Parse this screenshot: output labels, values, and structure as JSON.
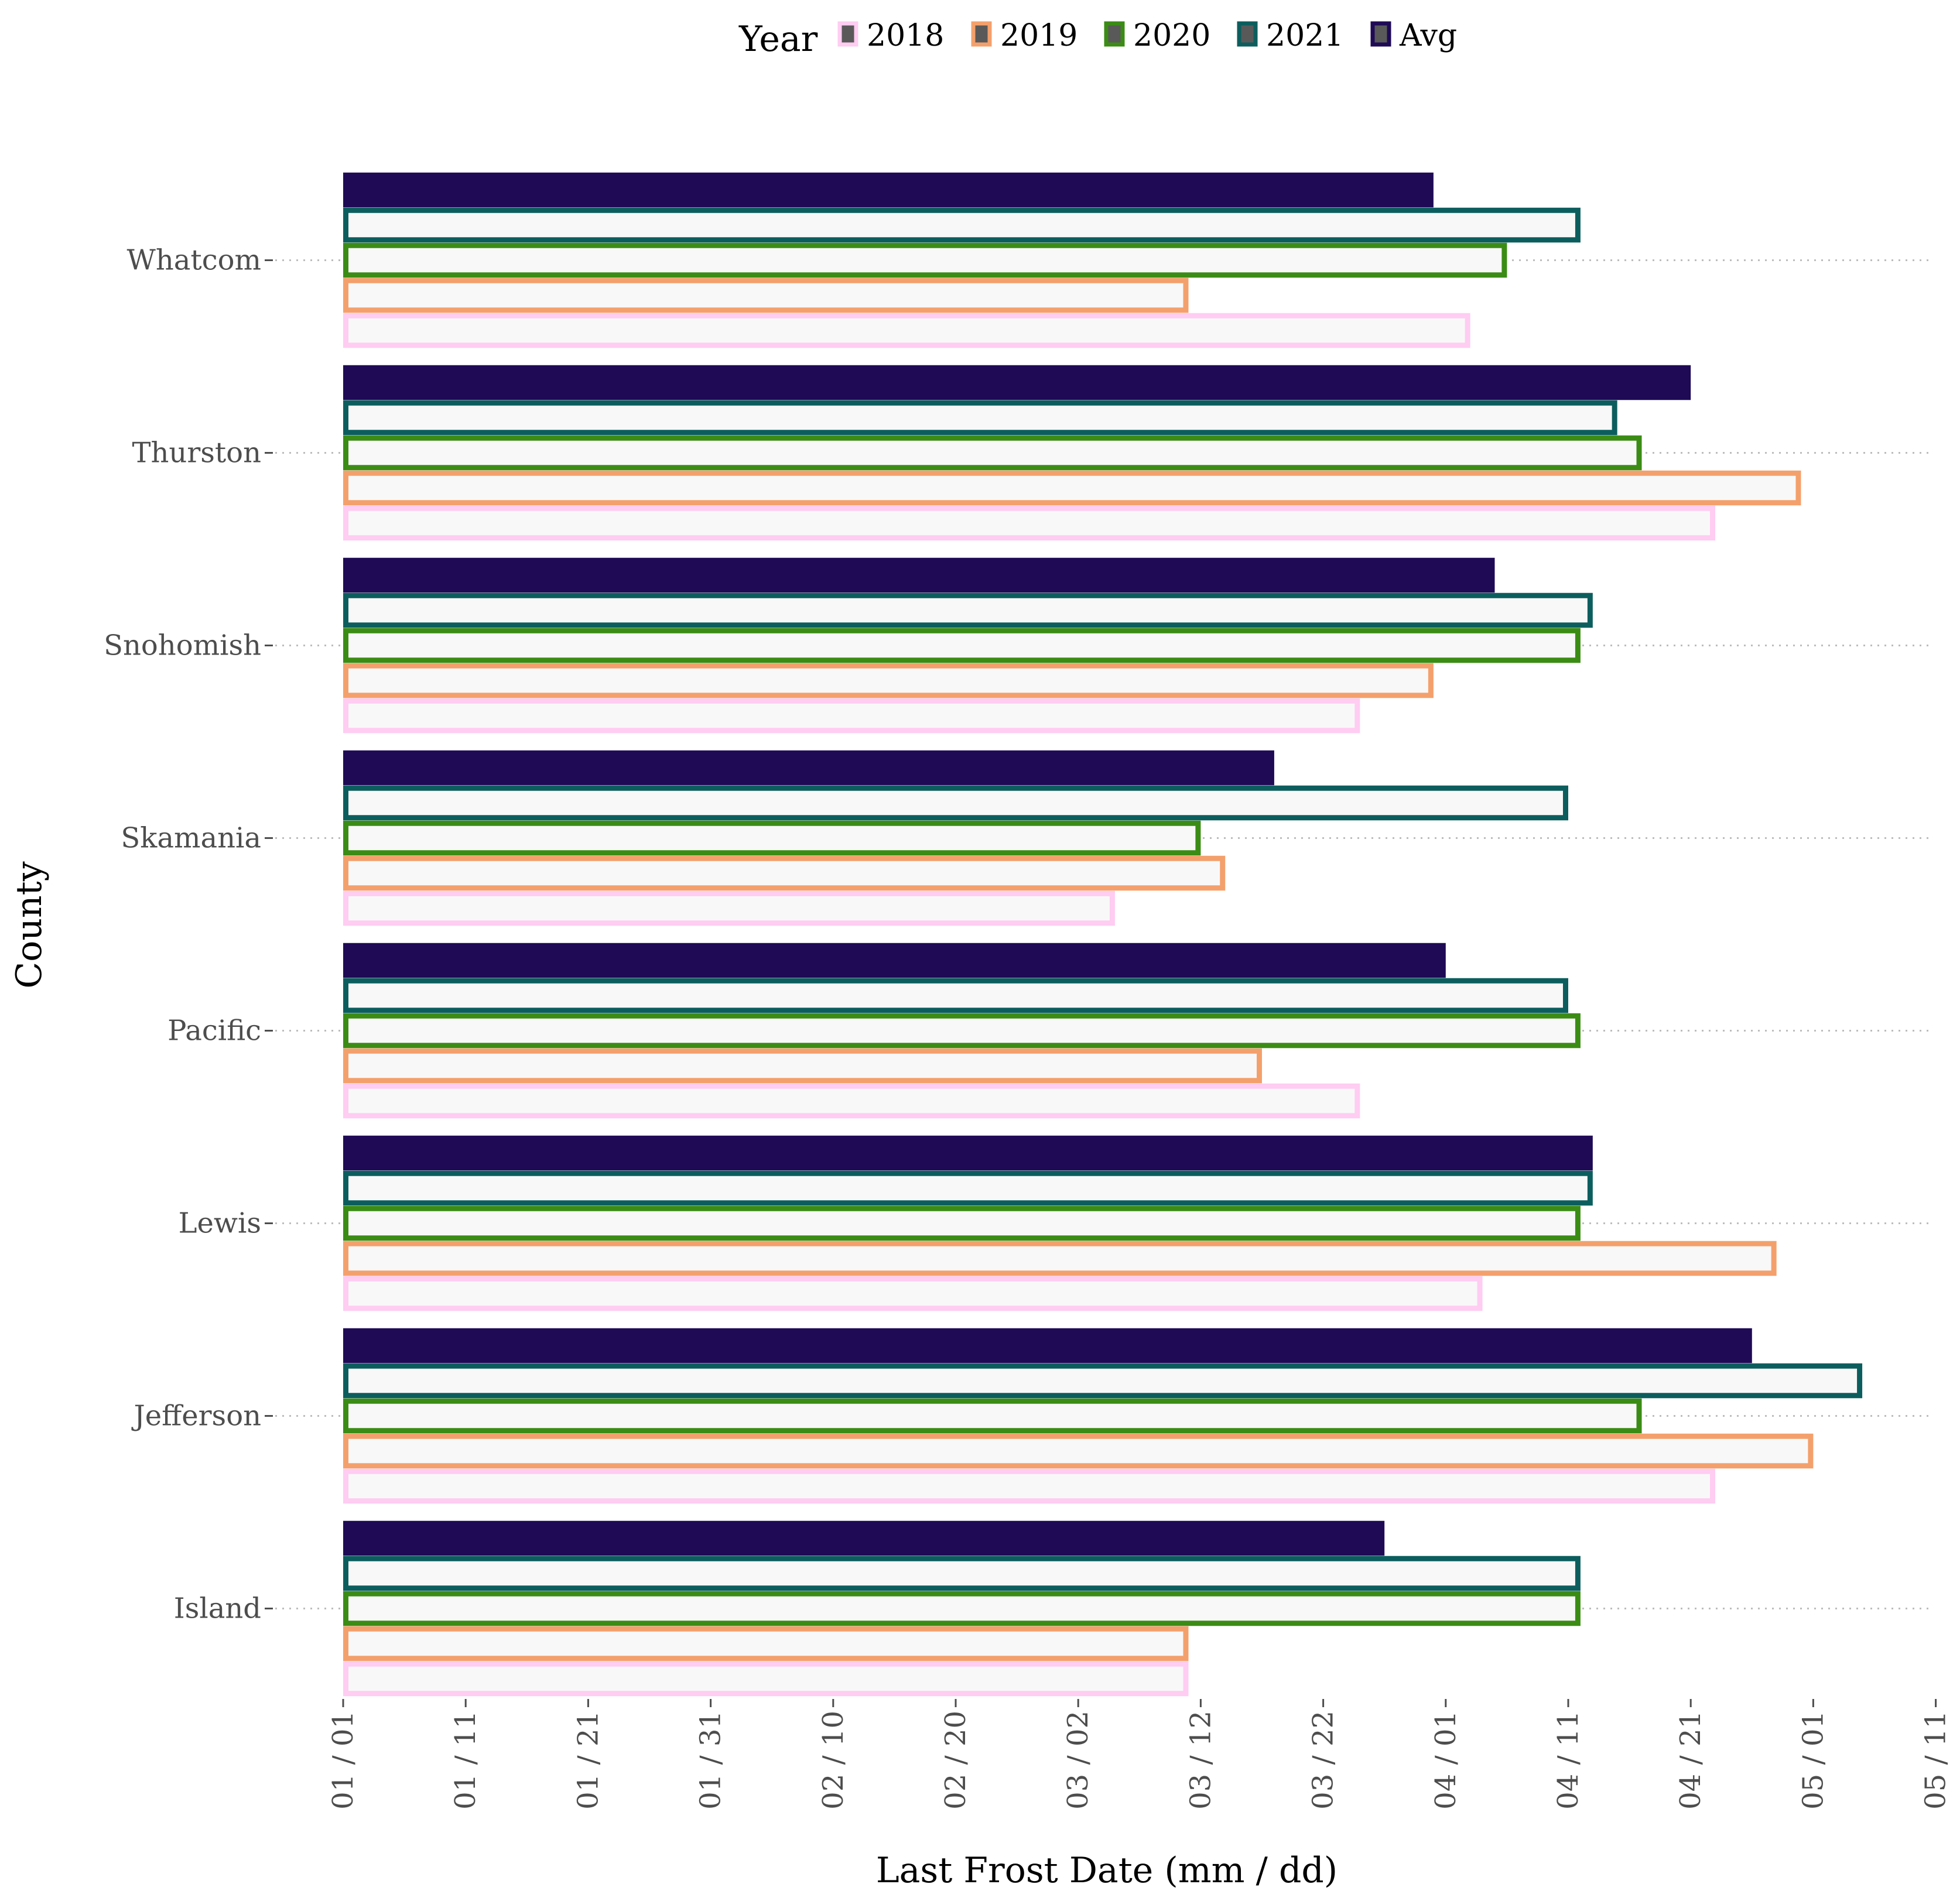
{
  "chart_data": {
    "type": "bar",
    "orientation": "horizontal",
    "title": "",
    "xlabel": "Last Frost Date (mm / dd)",
    "ylabel": "County",
    "legend": {
      "title": "Year",
      "position": "top"
    },
    "categories": [
      "Whatcom",
      "Thurston",
      "Snohomish",
      "Skamania",
      "Pacific",
      "Lewis",
      "Jefferson",
      "Island"
    ],
    "x_ticks": [
      "01 / 01",
      "01 / 11",
      "01 / 21",
      "01 / 31",
      "02 / 10",
      "02 / 20",
      "03 / 02",
      "03 / 12",
      "03 / 22",
      "04 / 01",
      "04 / 11",
      "04 / 21",
      "05 / 01",
      "05 / 11"
    ],
    "x_unit": "day",
    "xlim": [
      "01 / 01",
      "05 / 11"
    ],
    "grid": {
      "horizontal": "dotted",
      "vertical": "none"
    },
    "series": [
      {
        "name": "2018",
        "style": "outline",
        "color": "#ffccf2",
        "values": [
          "04 / 03",
          "04 / 23",
          "03 / 25",
          "03 / 05",
          "03 / 25",
          "04 / 04",
          "04 / 23",
          "03 / 11"
        ]
      },
      {
        "name": "2019",
        "style": "outline",
        "color": "#f4a06c",
        "values": [
          "03 / 11",
          "04 / 30",
          "03 / 31",
          "03 / 14",
          "03 / 17",
          "04 / 28",
          "05 / 01",
          "03 / 11"
        ]
      },
      {
        "name": "2020",
        "style": "outline",
        "color": "#3b8c15",
        "values": [
          "04 / 06",
          "04 / 17",
          "04 / 12",
          "03 / 12",
          "04 / 12",
          "04 / 12",
          "04 / 17",
          "04 / 12"
        ]
      },
      {
        "name": "2021",
        "style": "outline",
        "color": "#0c5e5e",
        "values": [
          "04 / 12",
          "04 / 15",
          "04 / 13",
          "04 / 11",
          "04 / 11",
          "04 / 13",
          "05 / 05",
          "04 / 12"
        ]
      },
      {
        "name": "Avg",
        "style": "filled",
        "color": "#1f0a56",
        "values": [
          "03 / 31",
          "04 / 21",
          "04 / 05",
          "03 / 18",
          "04 / 01",
          "04 / 13",
          "04 / 26",
          "03 / 27"
        ]
      }
    ],
    "bar_fill": "#f8f8f8"
  }
}
